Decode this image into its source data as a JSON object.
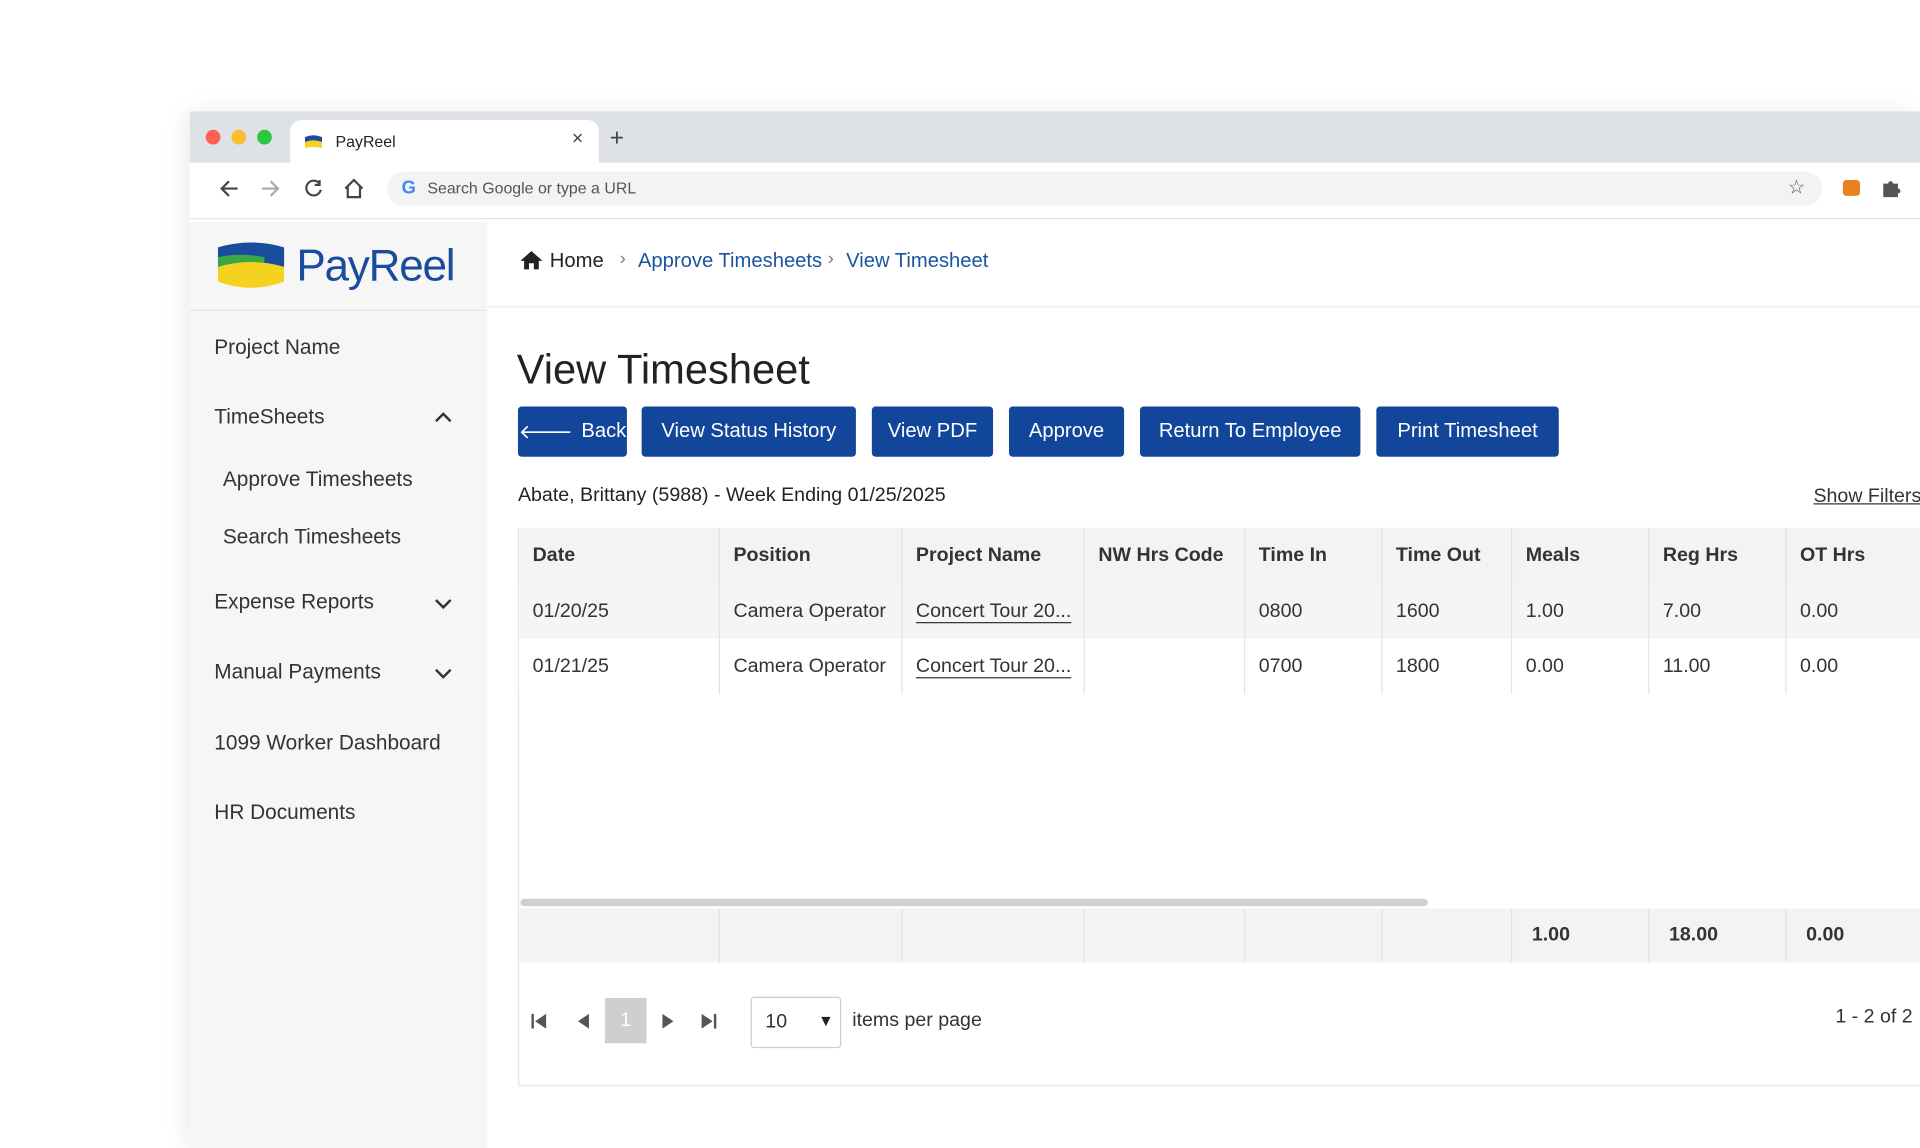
{
  "browser": {
    "tab_title": "PayReel",
    "address_placeholder": "Search Google or type a URL"
  },
  "logo": "PayReel",
  "breadcrumb": [
    "Home",
    "Approve Timesheets",
    "View Timesheet"
  ],
  "sidebar": {
    "project": "Project Name",
    "timesheets": {
      "label": "TimeSheets",
      "children": [
        "Approve Timesheets",
        "Search Timesheets"
      ]
    },
    "expense_reports": "Expense Reports",
    "manual_payments": "Manual Payments",
    "worker_dashboard": "1099 Worker Dashboard",
    "hr_documents": "HR Documents"
  },
  "page_title": "View Timesheet",
  "buttons": [
    "Back",
    "View Status History",
    "View PDF",
    "Approve",
    "Return To Employee",
    "Print Timesheet"
  ],
  "subtitle": "Abate, Brittany (5988) - Week Ending 01/25/2025",
  "show_filters": "Show Filters",
  "table": {
    "columns": [
      "Date",
      "Position",
      "Project Name",
      "NW Hrs Code",
      "Time In",
      "Time Out",
      "Meals",
      "Reg Hrs",
      "OT Hrs"
    ],
    "rows": [
      [
        "01/20/25",
        "Camera Operator",
        "Concert Tour 20...",
        null,
        "0800",
        "1600",
        "1.00",
        "7.00",
        "0.00"
      ],
      [
        "01/21/25",
        "Camera Operator",
        "Concert Tour 20...",
        null,
        "0700",
        "1800",
        "0.00",
        "11.00",
        "0.00"
      ]
    ],
    "totals": [
      null,
      null,
      null,
      null,
      null,
      null,
      "1.00",
      "18.00",
      "0.00"
    ]
  },
  "pagination": {
    "page": "1",
    "page_size": "10",
    "page_size_label": "items per page",
    "range": "1 - 2 of 2"
  }
}
